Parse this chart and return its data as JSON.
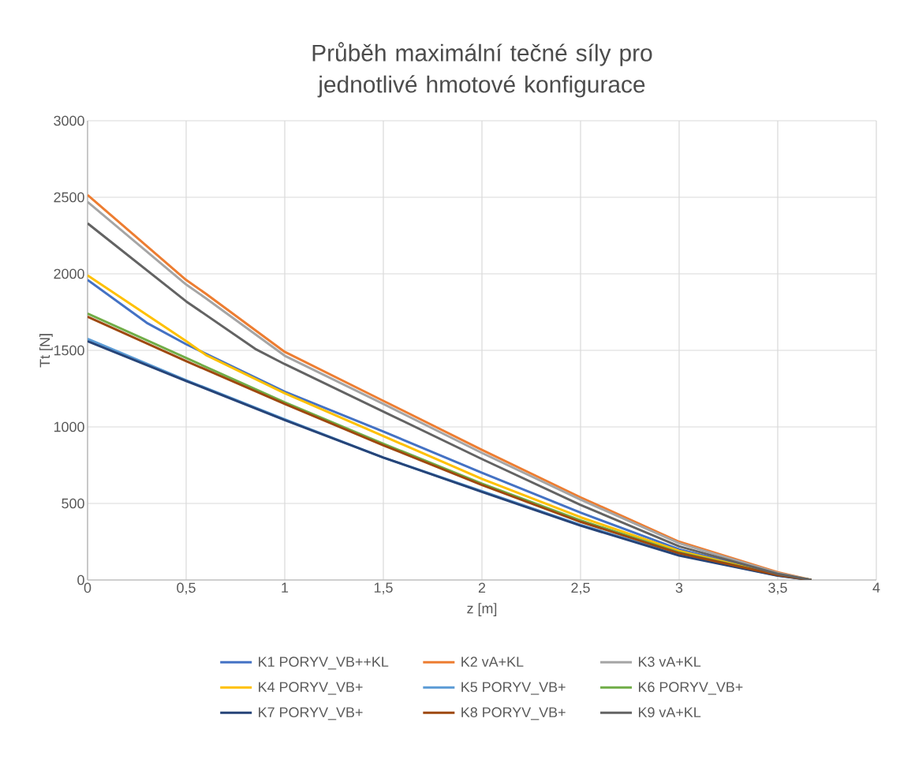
{
  "chart_data": {
    "type": "line",
    "title": "Průběh maximální tečné síly pro jednotlivé hmotové konfigurace",
    "xlabel": "z [m]",
    "ylabel": "Tt [N]",
    "x": [
      0,
      0.5,
      1,
      1.5,
      2,
      2.5,
      3,
      3.5,
      3.67
    ],
    "xlim": [
      0,
      4
    ],
    "ylim": [
      0,
      3000
    ],
    "xticks": [
      0,
      {
        "value": 0.5,
        "label": "0,5"
      },
      1,
      {
        "value": 1.5,
        "label": "1,5"
      },
      2,
      {
        "value": 2.5,
        "label": "2,5"
      },
      3,
      {
        "value": 3.5,
        "label": "3,5"
      },
      4
    ],
    "yticks": [
      0,
      500,
      1000,
      1500,
      2000,
      2500,
      3000
    ],
    "grid": true,
    "legend": "bottom",
    "marker": "none",
    "line_style": "solid",
    "series": [
      {
        "name": "K1 PORYV_VB++KL",
        "color": "#4472c4",
        "x": [
          0,
          0.3,
          0.5,
          1,
          1.5,
          2,
          2.5,
          3,
          3.5,
          3.67
        ],
        "values": [
          1960,
          1680,
          1540,
          1230,
          970,
          700,
          440,
          200,
          38,
          0
        ]
      },
      {
        "name": "K2 vA+KL",
        "color": "#ed7d31",
        "x": [
          0,
          0.5,
          0.6,
          1,
          1.5,
          2,
          2.5,
          3,
          3.5,
          3.67
        ],
        "values": [
          2515,
          1960,
          1870,
          1490,
          1170,
          850,
          540,
          250,
          50,
          0
        ]
      },
      {
        "name": "K3 vA+KL",
        "color": "#a5a5a5",
        "x": [
          0,
          0.5,
          0.6,
          1,
          1.5,
          2,
          2.5,
          3,
          3.5,
          3.67
        ],
        "values": [
          2470,
          1930,
          1840,
          1465,
          1150,
          830,
          525,
          240,
          45,
          0
        ]
      },
      {
        "name": "K4 PORYV_VB+",
        "color": "#ffc000",
        "x": [
          0,
          0.5,
          0.6,
          1,
          1.5,
          2,
          2.5,
          3,
          3.5,
          3.67
        ],
        "values": [
          1990,
          1560,
          1470,
          1220,
          940,
          660,
          410,
          190,
          35,
          0
        ]
      },
      {
        "name": "K5 PORYV_VB+",
        "color": "#5b9bd5",
        "values": [
          1575,
          1305,
          1050,
          800,
          580,
          360,
          165,
          30,
          0
        ]
      },
      {
        "name": "K6 PORYV_VB+",
        "color": "#70ad47",
        "values": [
          1740,
          1450,
          1160,
          890,
          630,
          390,
          180,
          33,
          0
        ]
      },
      {
        "name": "K7 PORYV_VB+",
        "color": "#264478",
        "values": [
          1560,
          1300,
          1045,
          800,
          575,
          355,
          160,
          28,
          0
        ]
      },
      {
        "name": "K8 PORYV_VB+",
        "color": "#9e480e",
        "values": [
          1720,
          1430,
          1150,
          880,
          620,
          380,
          175,
          32,
          0
        ]
      },
      {
        "name": "K9 vA+KL",
        "color": "#636363",
        "x": [
          0,
          0.5,
          0.85,
          1,
          1.5,
          2,
          2.5,
          3,
          3.5,
          3.67
        ],
        "values": [
          2330,
          1820,
          1510,
          1410,
          1100,
          790,
          490,
          220,
          40,
          0
        ]
      }
    ]
  }
}
